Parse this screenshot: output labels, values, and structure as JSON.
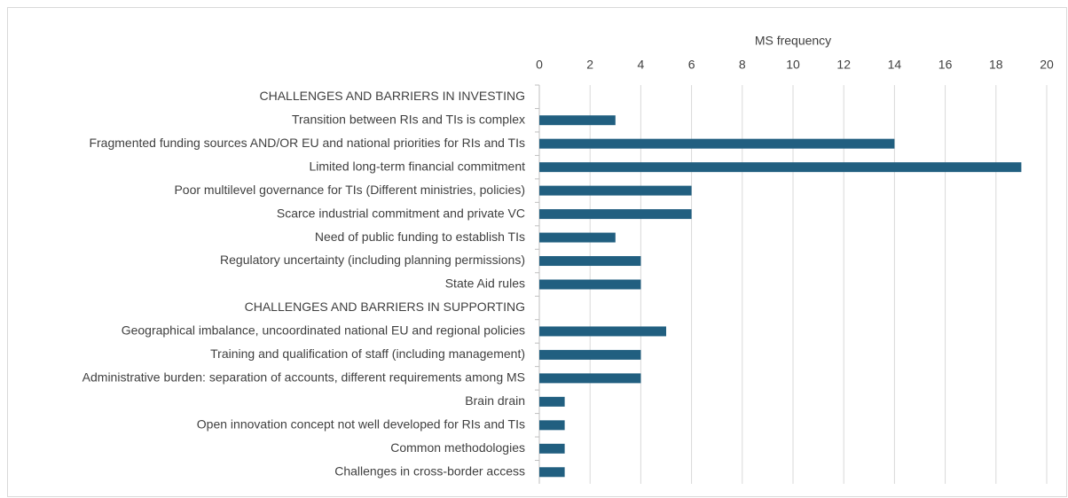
{
  "chart_data": {
    "type": "bar",
    "orientation": "horizontal",
    "x_label": "MS frequency",
    "categories": [
      "CHALLENGES AND BARRIERS IN INVESTING",
      "Transition between RIs and TIs is complex",
      "Fragmented funding sources AND/OR EU and national priorities for RIs and TIs",
      "Limited long-term financial commitment",
      "Poor multilevel governance for TIs (Different ministries, policies)",
      "Scarce industrial commitment and private VC",
      "Need of public funding to establish TIs",
      "Regulatory uncertainty (including planning permissions)",
      "State Aid rules",
      "CHALLENGES AND BARRIERS IN SUPPORTING",
      "Geographical imbalance, uncoordinated national EU and regional policies",
      "Training and qualification of staff (including management)",
      "Administrative burden: separation of accounts, different requirements among MS",
      "Brain drain",
      "Open innovation concept not well developed for RIs and TIs",
      "Common methodologies",
      "Challenges in cross-border access"
    ],
    "values": [
      null,
      3,
      14,
      19,
      6,
      6,
      3,
      4,
      4,
      null,
      5,
      4,
      4,
      1,
      1,
      1,
      1
    ],
    "color": "#215f80",
    "xlim": [
      0,
      20
    ],
    "xticks": [
      0,
      2,
      4,
      6,
      8,
      10,
      12,
      14,
      16,
      18,
      20
    ],
    "grid": true
  }
}
